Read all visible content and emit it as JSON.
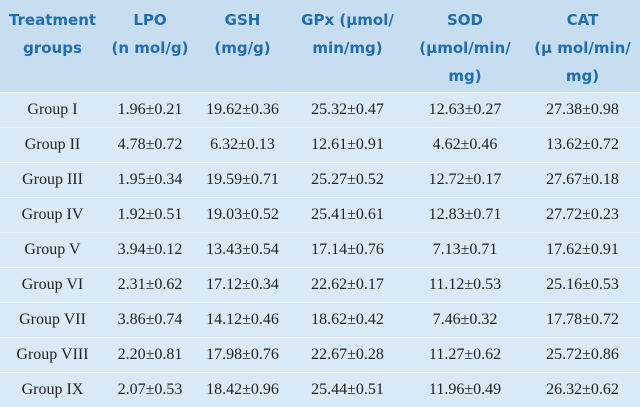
{
  "table": {
    "header": [
      [
        "Treatment",
        "groups"
      ],
      [
        "LPO",
        "(n mol/g)"
      ],
      [
        "GSH",
        "(mg/g)"
      ],
      [
        "GPx (µmol/",
        "min/mg)"
      ],
      [
        "SOD",
        "(µmol/min/",
        "mg)"
      ],
      [
        "CAT",
        "(µ mol/min/",
        "mg)"
      ]
    ],
    "rows": [
      [
        "Group I",
        "1.96±0.21",
        "19.62±0.36",
        "25.32±0.47",
        "12.63±0.27",
        "27.38±0.98"
      ],
      [
        "Group II",
        "4.78±0.72",
        "6.32±0.13",
        "12.61±0.91",
        "4.62±0.46",
        "13.62±0.72"
      ],
      [
        "Group III",
        "1.95±0.34",
        "19.59±0.71",
        "25.27±0.52",
        "12.72±0.17",
        "27.67±0.18"
      ],
      [
        "Group IV",
        "1.92±0.51",
        "19.03±0.52",
        "25.41±0.61",
        "12.83±0.71",
        "27.72±0.23"
      ],
      [
        "Group V",
        "3.94±0.12",
        "13.43±0.54",
        "17.14±0.76",
        "7.13±0.71",
        "17.62±0.91"
      ],
      [
        "Group VI",
        "2.31±0.62",
        "17.12±0.34",
        "22.62±0.17",
        "11.12±0.53",
        "25.16±0.53"
      ],
      [
        "Group VII",
        "3.86±0.74",
        "14.12±0.46",
        "18.62±0.42",
        "7.46±0.32",
        "17.78±0.72"
      ],
      [
        "Group VIII",
        "2.20±0.81",
        "17.98±0.76",
        "22.67±0.28",
        "11.27±0.62",
        "25.72±0.86"
      ],
      [
        "Group IX",
        "2.07±0.53",
        "18.42±0.96",
        "25.44±0.51",
        "11.96±0.49",
        "26.32±0.62"
      ]
    ]
  }
}
